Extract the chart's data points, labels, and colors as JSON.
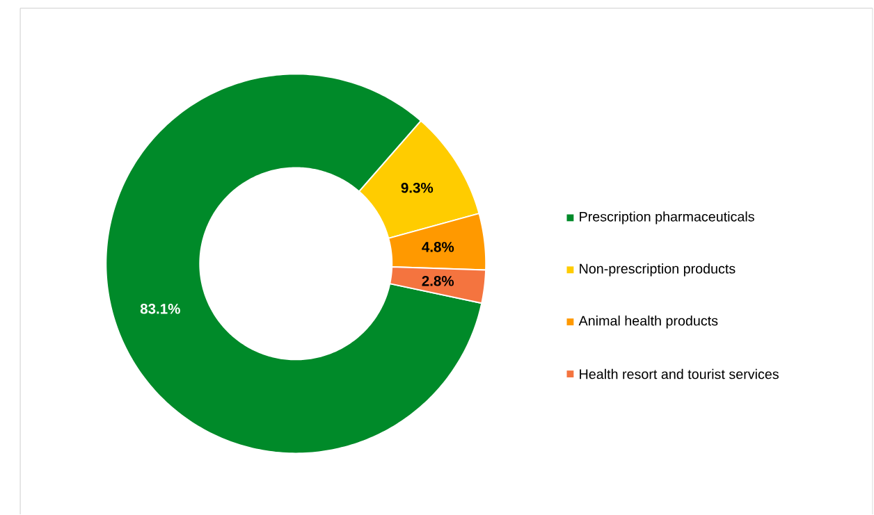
{
  "chart_data": {
    "type": "donut",
    "categories": [
      "Prescription pharmaceuticals",
      "Non-prescription products",
      "Animal health products",
      "Health resort and tourist services"
    ],
    "values": [
      83.1,
      9.3,
      4.8,
      2.8
    ],
    "colors": [
      "#008a29",
      "#ffcc00",
      "#ff9900",
      "#f4743f"
    ],
    "value_labels": [
      "83.1%",
      "9.3%",
      "4.8%",
      "2.8%"
    ],
    "legend": "right"
  }
}
